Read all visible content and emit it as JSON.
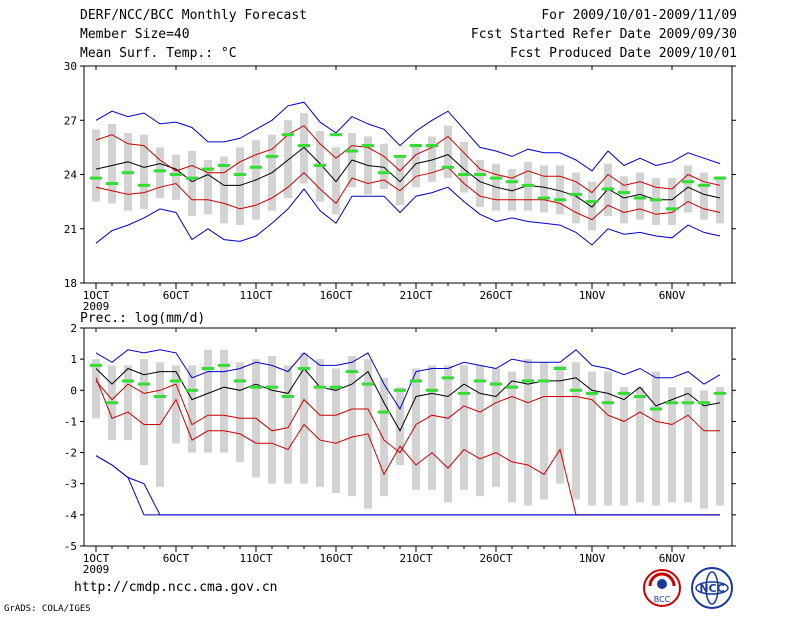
{
  "header": {
    "title": "DERF/NCC/BCC Monthly Forecast",
    "member_size": "Member Size=40",
    "variable": "Mean Surf. Temp.: °C",
    "period": "For 2009/10/01-2009/11/09",
    "started": "Fcst Started Refer Date 2009/09/30",
    "produced": "Fcst Produced Date 2009/10/01"
  },
  "footer": {
    "url": "http://cmdp.ncc.cma.gov.cn",
    "credit": "GrADS: COLA/IGES"
  },
  "logos": {
    "left": "BCC",
    "right": "NCC"
  },
  "colors": {
    "mean": "#000000",
    "spread1": "#cc0000",
    "spread2": "#0000cc",
    "box": "#d3d3d3",
    "obs": "#33dd33"
  },
  "chart_data": [
    {
      "type": "box-ensemble",
      "title": "Mean Surf. Temp.: °C",
      "ylabel": "",
      "ylim": [
        18,
        30
      ],
      "yticks": [
        18,
        21,
        24,
        27,
        30
      ],
      "ytick_labels": [
        "18",
        "21",
        "24",
        "27",
        "30"
      ],
      "days": 40,
      "xticks": [
        {
          "day": 1,
          "label": "1OCT"
        },
        {
          "day": 6,
          "label": "6OCT"
        },
        {
          "day": 11,
          "label": "11OCT"
        },
        {
          "day": 16,
          "label": "16OCT"
        },
        {
          "day": 21,
          "label": "21OCT"
        },
        {
          "day": 26,
          "label": "26OCT"
        },
        {
          "day": 32,
          "label": "1NOV"
        },
        {
          "day": 37,
          "label": "6NOV"
        }
      ],
      "year_label": "2009",
      "series": [
        {
          "name": "ensemble mean",
          "color": "#000000",
          "values": [
            24.3,
            24.5,
            24.7,
            24.4,
            24.6,
            24.3,
            23.6,
            24.0,
            23.4,
            23.4,
            23.7,
            24.1,
            24.8,
            25.5,
            24.6,
            23.6,
            24.8,
            24.5,
            24.4,
            23.6,
            24.6,
            24.8,
            25.1,
            24.3,
            23.6,
            23.3,
            23.1,
            23.4,
            23.3,
            23.1,
            22.8,
            22.2,
            23.2,
            22.7,
            22.9,
            22.6,
            22.6,
            23.3,
            22.9,
            22.7
          ]
        },
        {
          "name": "spread +1",
          "color": "#cc0000",
          "values": [
            25.9,
            26.2,
            25.7,
            25.6,
            24.8,
            24.2,
            24.5,
            24.1,
            24.1,
            24.7,
            25.1,
            25.4,
            26.2,
            26.7,
            25.7,
            24.9,
            25.6,
            25.5,
            25.0,
            24.2,
            25.1,
            25.5,
            26.1,
            25.2,
            24.3,
            24.0,
            23.8,
            24.2,
            23.9,
            23.9,
            23.6,
            23.0,
            24.0,
            23.4,
            23.6,
            23.3,
            23.2,
            24.0,
            23.6,
            23.4
          ]
        },
        {
          "name": "spread -1",
          "color": "#cc0000",
          "values": [
            23.3,
            23.1,
            22.9,
            23.0,
            23.3,
            23.5,
            22.6,
            22.6,
            22.4,
            22.1,
            22.3,
            22.7,
            23.3,
            24.1,
            23.2,
            22.4,
            23.8,
            23.5,
            23.7,
            23.1,
            23.9,
            24.1,
            24.4,
            23.5,
            22.8,
            22.6,
            22.6,
            22.6,
            22.6,
            22.4,
            21.9,
            21.5,
            22.3,
            21.9,
            22.1,
            21.8,
            21.9,
            22.5,
            22.1,
            21.9
          ]
        },
        {
          "name": "spread +2",
          "color": "#0000cc",
          "values": [
            27.0,
            27.5,
            27.2,
            27.4,
            26.8,
            26.9,
            26.6,
            25.8,
            25.8,
            26.0,
            26.5,
            27.0,
            27.8,
            28.0,
            26.9,
            26.3,
            27.2,
            26.8,
            26.5,
            25.6,
            26.4,
            27.0,
            27.5,
            26.5,
            25.5,
            25.3,
            25.0,
            25.4,
            25.2,
            25.2,
            24.8,
            24.2,
            25.3,
            24.5,
            24.9,
            24.5,
            24.7,
            25.2,
            24.9,
            24.6
          ]
        },
        {
          "name": "spread -2",
          "color": "#0000cc",
          "values": [
            20.2,
            20.9,
            21.2,
            21.6,
            22.1,
            21.9,
            20.4,
            21.0,
            20.4,
            20.3,
            20.6,
            21.3,
            22.1,
            23.2,
            22.0,
            21.3,
            22.8,
            22.8,
            22.8,
            21.9,
            22.8,
            23.0,
            23.3,
            22.5,
            21.8,
            21.4,
            21.6,
            21.4,
            21.3,
            21.2,
            20.8,
            20.1,
            21.0,
            20.7,
            20.8,
            20.6,
            20.5,
            21.2,
            20.8,
            20.6
          ]
        }
      ],
      "box_low": [
        22.5,
        22.4,
        22.0,
        22.1,
        22.7,
        22.6,
        21.7,
        21.8,
        21.3,
        21.2,
        21.5,
        22.0,
        22.7,
        23.5,
        22.5,
        21.8,
        23.3,
        22.9,
        23.2,
        22.3,
        23.3,
        23.6,
        23.8,
        23.0,
        22.2,
        22.0,
        22.0,
        22.0,
        21.9,
        21.8,
        21.3,
        20.9,
        21.7,
        21.3,
        21.5,
        21.2,
        21.2,
        21.9,
        21.5,
        21.3
      ],
      "box_high": [
        26.5,
        26.8,
        26.3,
        26.2,
        25.5,
        25.1,
        25.3,
        24.8,
        25.0,
        25.5,
        25.9,
        26.2,
        27.0,
        27.4,
        26.4,
        25.5,
        26.3,
        26.1,
        25.7,
        24.9,
        25.7,
        26.1,
        26.7,
        25.8,
        24.8,
        24.6,
        24.3,
        24.7,
        24.5,
        24.5,
        24.1,
        23.6,
        24.6,
        23.9,
        24.1,
        23.8,
        23.8,
        24.5,
        24.1,
        23.9
      ],
      "observed": [
        23.8,
        23.5,
        24.1,
        23.4,
        24.2,
        24.0,
        23.8,
        24.3,
        24.5,
        24.0,
        24.4,
        25.0,
        26.2,
        25.6,
        24.5,
        26.2,
        25.3,
        25.6,
        24.1,
        25.0,
        25.6,
        25.6,
        24.4,
        24.0,
        24.0,
        23.8,
        23.6,
        23.4,
        22.7,
        22.6,
        22.9,
        22.5,
        23.2,
        23.0,
        22.7,
        22.6,
        22.1,
        23.6,
        23.4,
        23.8
      ]
    },
    {
      "type": "box-ensemble",
      "title": "Prec.: log(mm/d)",
      "ylabel": "",
      "ylim": [
        -5,
        2
      ],
      "yticks": [
        -5,
        -4,
        -3,
        -2,
        -1,
        0,
        1,
        2
      ],
      "ytick_labels": [
        "-5",
        "-4",
        "-3",
        "-2",
        "-1",
        "0",
        "1",
        "2"
      ],
      "days": 40,
      "xticks": [
        {
          "day": 1,
          "label": "1OCT"
        },
        {
          "day": 6,
          "label": "6OCT"
        },
        {
          "day": 11,
          "label": "11OCT"
        },
        {
          "day": 16,
          "label": "16OCT"
        },
        {
          "day": 21,
          "label": "21OCT"
        },
        {
          "day": 26,
          "label": "26OCT"
        },
        {
          "day": 32,
          "label": "1NOV"
        },
        {
          "day": 37,
          "label": "6NOV"
        }
      ],
      "year_label": "2009",
      "series": [
        {
          "name": "ensemble mean",
          "color": "#000000",
          "values": [
            0.7,
            0.2,
            0.7,
            0.5,
            0.6,
            0.6,
            -0.3,
            -0.1,
            0.1,
            0.0,
            0.2,
            0.0,
            -0.1,
            0.7,
            0.1,
            0.0,
            0.2,
            0.6,
            -0.4,
            -1.3,
            -0.2,
            -0.1,
            -0.2,
            0.2,
            -0.1,
            -0.2,
            0.3,
            0.2,
            0.3,
            0.3,
            0.4,
            0.0,
            -0.1,
            -0.3,
            0.1,
            -0.5,
            -0.3,
            -0.1,
            -0.5,
            -0.4
          ]
        },
        {
          "name": "spread +1",
          "color": "#cc0000",
          "values": [
            0.3,
            -0.3,
            0.2,
            -0.1,
            0.0,
            0.2,
            -1.1,
            -0.8,
            -0.8,
            -0.9,
            -0.9,
            -1.3,
            -1.2,
            -0.3,
            -0.8,
            -0.8,
            -0.6,
            -0.6,
            -1.6,
            -2.0,
            -1.1,
            -0.8,
            -0.9,
            -0.5,
            -0.7,
            -0.4,
            -0.2,
            -0.4,
            -0.2,
            -0.2,
            -0.2,
            -0.3,
            -0.8,
            -1.0,
            -0.7,
            -1.0,
            -1.1,
            -0.8,
            -1.3,
            -1.3
          ]
        },
        {
          "name": "spread -1",
          "color": "#cc0000",
          "values": [
            0.4,
            -0.9,
            -0.7,
            -1.1,
            -1.1,
            -0.3,
            -1.6,
            -1.3,
            -1.3,
            -1.4,
            -1.7,
            -1.7,
            -1.9,
            -1.1,
            -1.6,
            -1.7,
            -1.5,
            -1.4,
            -2.7,
            -1.8,
            -2.4,
            -2.0,
            -2.5,
            -1.9,
            -2.2,
            -2.0,
            -2.3,
            -2.4,
            -2.7,
            -1.9,
            -4.0,
            -4.0,
            -4.0,
            -4.0,
            -4.0,
            -4.0,
            -4.0,
            -4.0,
            -4.0,
            -4.0
          ]
        },
        {
          "name": "spread +2",
          "color": "#0000cc",
          "values": [
            1.2,
            0.9,
            1.3,
            1.2,
            1.3,
            1.2,
            0.4,
            0.6,
            0.6,
            0.7,
            0.9,
            0.8,
            0.6,
            1.2,
            0.8,
            0.8,
            0.9,
            1.2,
            0.2,
            -0.6,
            0.6,
            0.7,
            0.7,
            0.9,
            0.8,
            0.7,
            1.0,
            0.9,
            0.9,
            0.9,
            1.3,
            0.8,
            0.7,
            0.5,
            0.7,
            0.4,
            0.4,
            0.6,
            0.2,
            0.5
          ]
        },
        {
          "name": "spread -2",
          "color": "#0000cc",
          "values": [
            -2.1,
            -2.4,
            -2.8,
            -3.0,
            -4.0,
            -4.0,
            -4.0,
            -4.0,
            -4.0,
            -4.0,
            -4.0,
            -4.0,
            -4.0,
            -4.0,
            -4.0,
            -4.0,
            -4.0,
            -4.0,
            -4.0,
            -4.0,
            -4.0,
            -4.0,
            -4.0,
            -4.0,
            -4.0,
            -4.0,
            -4.0,
            -4.0,
            -4.0,
            -4.0,
            -4.0,
            -4.0,
            -4.0,
            -4.0,
            -4.0,
            -4.0,
            -4.0,
            -4.0,
            -4.0,
            -4.0
          ]
        },
        {
          "name": "spread +2 lower tail",
          "color": "#0000cc",
          "values": [
            -2.1,
            -2.4,
            -2.8,
            -4.0,
            -4.0,
            -4.0,
            -4.0,
            -4.0,
            -4.0,
            -4.0,
            -4.0,
            -4.0,
            -4.0,
            -4.0,
            -4.0,
            -4.0,
            -4.0,
            -4.0,
            -4.0,
            -4.0,
            -4.0,
            -4.0,
            -4.0,
            -4.0,
            -4.0,
            -4.0,
            -4.0,
            -4.0,
            -4.0,
            -4.0,
            -4.0,
            -4.0,
            -4.0,
            -4.0,
            -4.0,
            -4.0,
            -4.0,
            -4.0,
            -4.0,
            -4.0
          ]
        }
      ],
      "box_low": [
        -0.9,
        -1.6,
        -1.6,
        -2.4,
        -3.1,
        -1.7,
        -2.0,
        -2.0,
        -2.0,
        -2.3,
        -2.8,
        -3.0,
        -3.0,
        -3.0,
        -3.1,
        -3.3,
        -3.4,
        -3.8,
        -3.4,
        -2.4,
        -3.2,
        -3.2,
        -3.6,
        -3.2,
        -3.4,
        -3.1,
        -3.6,
        -3.7,
        -3.5,
        -3.0,
        -3.5,
        -3.7,
        -3.7,
        -3.7,
        -3.6,
        -3.7,
        -3.6,
        -3.6,
        -3.8,
        -3.7
      ],
      "box_high": [
        1.0,
        0.8,
        0.8,
        1.0,
        0.9,
        0.8,
        0.8,
        1.3,
        1.3,
        0.9,
        1.0,
        1.1,
        0.8,
        1.2,
        1.0,
        0.7,
        1.1,
        1.0,
        0.4,
        0.1,
        0.7,
        0.8,
        0.8,
        0.8,
        0.8,
        0.7,
        0.6,
        1.0,
        0.9,
        0.8,
        0.9,
        0.6,
        0.6,
        0.1,
        0.1,
        0.6,
        0.1,
        0.1,
        0.0,
        0.1
      ],
      "observed": [
        0.8,
        -0.4,
        0.3,
        0.2,
        -0.2,
        0.3,
        0.0,
        0.7,
        0.8,
        0.3,
        0.1,
        0.1,
        -0.2,
        0.7,
        0.1,
        0.1,
        0.6,
        0.2,
        -0.7,
        0.0,
        0.3,
        0.0,
        0.4,
        -0.1,
        0.3,
        0.2,
        0.1,
        0.3,
        0.3,
        0.7,
        0.0,
        -0.1,
        -0.4,
        -0.1,
        -0.2,
        -0.6,
        -0.4,
        -0.4,
        -0.4,
        -0.1
      ]
    }
  ],
  "panel2_label": "Prec.: log(mm/d)"
}
